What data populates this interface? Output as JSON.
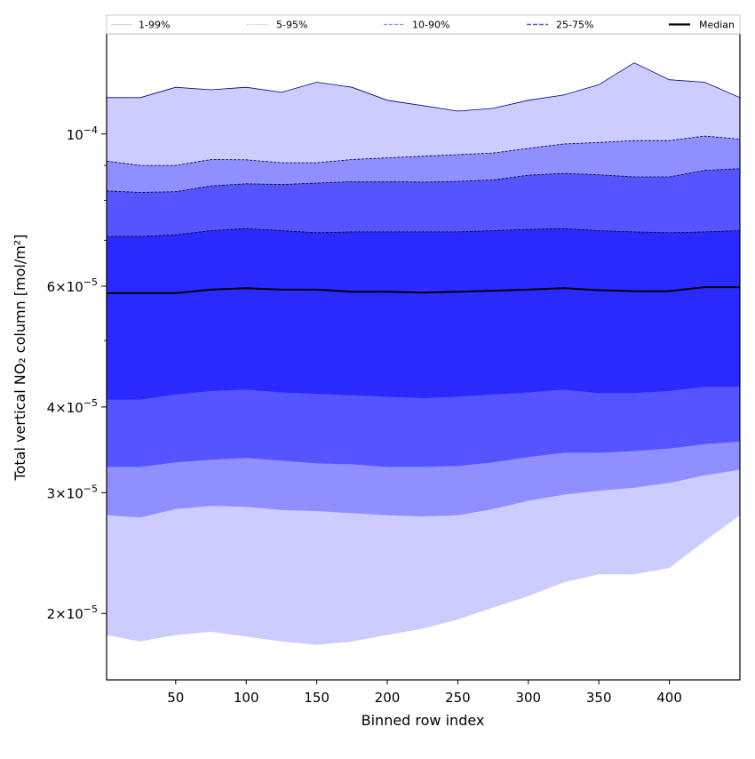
{
  "chart_data": {
    "type": "area",
    "title": "",
    "xlabel": "Binned row index",
    "ylabel": "Total vertical NO₂ column [mol/m²]",
    "x_ticks": [
      50,
      100,
      150,
      200,
      250,
      300,
      350,
      400
    ],
    "xlim": [
      1,
      450
    ],
    "y_scale": "log",
    "ylim": [
      1.6e-05,
      0.00014
    ],
    "y_ticks": [
      {
        "value": 2e-05,
        "label_coef": "2",
        "label_sep": "×",
        "label_base": "10",
        "label_exp": "−5"
      },
      {
        "value": 3e-05,
        "label_coef": "3",
        "label_sep": "×",
        "label_base": "10",
        "label_exp": "−5"
      },
      {
        "value": 4e-05,
        "label_coef": "4",
        "label_sep": "×",
        "label_base": "10",
        "label_exp": "−5"
      },
      {
        "value": 6e-05,
        "label_coef": "6",
        "label_sep": "×",
        "label_base": "10",
        "label_exp": "−5"
      },
      {
        "value": 0.0001,
        "label_coef": "",
        "label_sep": "",
        "label_base": "10",
        "label_exp": "−4"
      }
    ],
    "grid": false,
    "legend_position": "top",
    "x": [
      1,
      25,
      50,
      75,
      100,
      125,
      150,
      175,
      200,
      225,
      250,
      275,
      300,
      325,
      350,
      375,
      400,
      425,
      450
    ],
    "series": [
      {
        "name": "1-99%",
        "color": "#ccccff",
        "line_color": "#000080",
        "lower": [
          1.86e-05,
          1.82e-05,
          1.86e-05,
          1.88e-05,
          1.85e-05,
          1.82e-05,
          1.8e-05,
          1.82e-05,
          1.86e-05,
          1.9e-05,
          1.96e-05,
          2.04e-05,
          2.12e-05,
          2.22e-05,
          2.28e-05,
          2.28e-05,
          2.33e-05,
          2.55e-05,
          2.78e-05
        ],
        "upper": [
          0.000113,
          0.000113,
          0.000117,
          0.000116,
          0.000117,
          0.000115,
          0.000119,
          0.000117,
          0.000112,
          0.00011,
          0.000108,
          0.000109,
          0.000112,
          0.000114,
          0.000118,
          0.000127,
          0.00012,
          0.000119,
          0.000113
        ]
      },
      {
        "name": "5-95%",
        "color": "#8f8fff",
        "line_color": "#000040",
        "lower": [
          2.78e-05,
          2.76e-05,
          2.84e-05,
          2.87e-05,
          2.86e-05,
          2.83e-05,
          2.82e-05,
          2.8e-05,
          2.78e-05,
          2.77e-05,
          2.78e-05,
          2.84e-05,
          2.92e-05,
          2.98e-05,
          3.02e-05,
          3.05e-05,
          3.1e-05,
          3.18e-05,
          3.24e-05
        ],
        "upper": [
          9.13e-05,
          9e-05,
          9e-05,
          9.18e-05,
          9.17e-05,
          9.08e-05,
          9.08e-05,
          9.18e-05,
          9.23e-05,
          9.28e-05,
          9.33e-05,
          9.38e-05,
          9.53e-05,
          9.67e-05,
          9.72e-05,
          9.78e-05,
          9.78e-05,
          9.93e-05,
          9.83e-05
        ]
      },
      {
        "name": "10-90%",
        "color": "#5555ff",
        "line_color": "#000020",
        "lower": [
          3.27e-05,
          3.27e-05,
          3.32e-05,
          3.35e-05,
          3.37e-05,
          3.34e-05,
          3.31e-05,
          3.3e-05,
          3.27e-05,
          3.27e-05,
          3.28e-05,
          3.32e-05,
          3.38e-05,
          3.43e-05,
          3.43e-05,
          3.45e-05,
          3.48e-05,
          3.53e-05,
          3.56e-05
        ],
        "upper": [
          8.26e-05,
          8.22e-05,
          8.24e-05,
          8.4e-05,
          8.46e-05,
          8.44e-05,
          8.48e-05,
          8.52e-05,
          8.52e-05,
          8.51e-05,
          8.53e-05,
          8.57e-05,
          8.71e-05,
          8.76e-05,
          8.72e-05,
          8.66e-05,
          8.66e-05,
          8.85e-05,
          8.9e-05
        ]
      },
      {
        "name": "25-75%",
        "color": "#2a2aff",
        "line_color": "#000010",
        "lower": [
          4.1e-05,
          4.1e-05,
          4.17e-05,
          4.22e-05,
          4.24e-05,
          4.2e-05,
          4.18e-05,
          4.16e-05,
          4.14e-05,
          4.12e-05,
          4.14e-05,
          4.17e-05,
          4.2e-05,
          4.24e-05,
          4.19e-05,
          4.19e-05,
          4.22e-05,
          4.28e-05,
          4.28e-05
        ],
        "upper": [
          7.09e-05,
          7.09e-05,
          7.13e-05,
          7.23e-05,
          7.28e-05,
          7.23e-05,
          7.18e-05,
          7.2e-05,
          7.2e-05,
          7.2e-05,
          7.2e-05,
          7.23e-05,
          7.26e-05,
          7.28e-05,
          7.23e-05,
          7.2e-05,
          7.18e-05,
          7.2e-05,
          7.23e-05
        ]
      }
    ],
    "median": {
      "name": "Median",
      "color": "#000000",
      "values": [
        5.86e-05,
        5.86e-05,
        5.86e-05,
        5.93e-05,
        5.96e-05,
        5.93e-05,
        5.93e-05,
        5.89e-05,
        5.89e-05,
        5.87e-05,
        5.89e-05,
        5.91e-05,
        5.93e-05,
        5.96e-05,
        5.92e-05,
        5.9e-05,
        5.9e-05,
        5.98e-05,
        5.98e-05
      ]
    },
    "legend": [
      {
        "label": "1-99%",
        "color": "#c0c0e8",
        "style": "solid-thin"
      },
      {
        "label": "5-95%",
        "color": "#9090d8",
        "style": "dotted"
      },
      {
        "label": "10-90%",
        "color": "#8888ee",
        "style": "dashed"
      },
      {
        "label": "25-75%",
        "color": "#5555dd",
        "style": "dashed-thick"
      },
      {
        "label": "Median",
        "color": "#000000",
        "style": "solid-thick"
      }
    ]
  }
}
